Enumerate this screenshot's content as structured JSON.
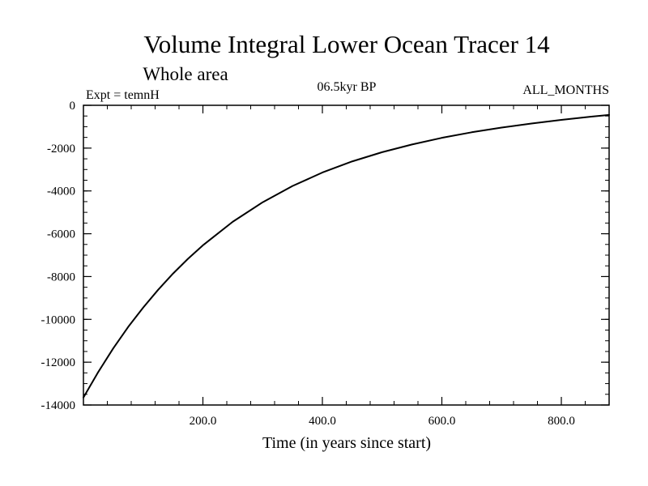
{
  "chart_data": {
    "type": "line",
    "title": "Volume Integral Lower Ocean Tracer 14",
    "subtitle": "Whole area",
    "annotations": {
      "experiment": "Expt = temnH",
      "period": "06.5kyr BP",
      "months": "ALL_MONTHS"
    },
    "xlabel": "Time (in years since start)",
    "ylabel": "",
    "xlim": [
      0,
      880
    ],
    "ylim": [
      -14000,
      0
    ],
    "x_ticks": [
      200,
      400,
      600,
      800
    ],
    "x_tick_labels": [
      "200.0",
      "400.0",
      "600.0",
      "800.0"
    ],
    "x_minor_step": 40,
    "y_ticks": [
      0,
      -2000,
      -4000,
      -6000,
      -8000,
      -10000,
      -12000,
      -14000
    ],
    "y_tick_labels": [
      "0",
      "-2000",
      "-4000",
      "-6000",
      "-8000",
      "-10000",
      "-12000",
      "-14000"
    ],
    "y_minor_step": 500,
    "grid": false,
    "series": [
      {
        "name": "Tracer 14",
        "color": "#000000",
        "x": [
          0,
          25,
          50,
          75,
          100,
          125,
          150,
          175,
          200,
          250,
          300,
          350,
          400,
          450,
          500,
          550,
          600,
          650,
          700,
          750,
          800,
          850,
          880
        ],
        "y": [
          -13650,
          -12450,
          -11350,
          -10350,
          -9450,
          -8620,
          -7860,
          -7170,
          -6540,
          -5440,
          -4530,
          -3770,
          -3140,
          -2620,
          -2190,
          -1830,
          -1520,
          -1260,
          -1040,
          -850,
          -680,
          -530,
          -450
        ]
      }
    ]
  }
}
